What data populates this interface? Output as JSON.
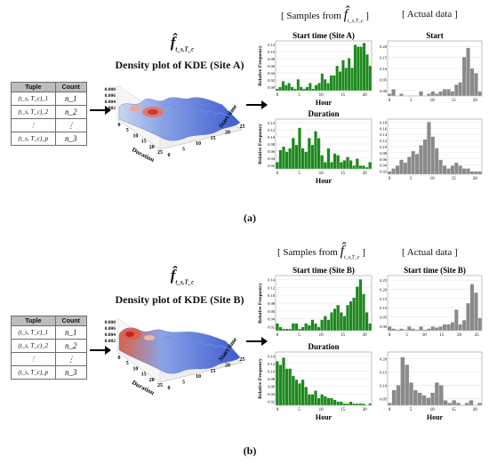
{
  "panels": [
    {
      "id": "a",
      "label": "(a)",
      "table": {
        "headers": [
          "Tuple",
          "Count"
        ],
        "rows": [
          {
            "tuple": "(t_s, T_c)_1",
            "count": "n_1"
          },
          {
            "tuple": "(t_s, T_c)_2",
            "count": "n_2"
          },
          {
            "tuple": "⋮",
            "count": "⋮"
          },
          {
            "tuple": "(t_s, T_c)_p",
            "count": "n_3"
          }
        ]
      },
      "kde_title": "Density plot of KDE (Site A)",
      "fhat_symbol": "f̂",
      "fhat_subscript": "t_s,T_c",
      "density_axis_ticks": [
        "0.008",
        "0.006",
        "0.004",
        "0.002"
      ],
      "duration_axis_label": "Duration",
      "duration_ticks": [
        "0",
        "5",
        "10",
        "15",
        "20",
        "25"
      ],
      "start_axis_label": "Start time",
      "start_ticks": [
        "0",
        "5",
        "10",
        "15",
        "20",
        "25"
      ],
      "samples_header": "[ Samples from",
      "samples_header_close": "]",
      "actual_header": "[ Actual data ]",
      "hists": {
        "sample_start": {
          "title": "Start time (Site A)",
          "ylabel": "Relative Frequency",
          "xlabel": "Hour",
          "yticks": [
            "0.00",
            "0.02",
            "0.04",
            "0.06",
            "0.08",
            "0.10",
            "0.12"
          ],
          "xticks": [
            "0",
            "5",
            "10",
            "15",
            "20"
          ],
          "values": [
            0.005,
            0.01,
            0.025,
            0.015,
            0.02,
            0.01,
            0.005,
            0.03,
            0.01,
            0.005,
            0.01,
            0.02,
            0.005,
            0.015,
            0.02,
            0.045,
            0.03,
            0.02,
            0.04,
            0.04,
            0.065,
            0.05,
            0.08,
            0.06,
            0.085,
            0.06,
            0.12,
            0.115,
            0.115,
            0.125,
            0.095,
            0.065
          ],
          "ymax": 0.13
        },
        "actual_start": {
          "title": "Start",
          "ylabel": "",
          "xlabel": "",
          "yticks": [
            "0.00",
            "0.05",
            "0.10",
            "0.15",
            "0.20"
          ],
          "xticks": [
            "0",
            "5",
            "10",
            "15",
            "20"
          ],
          "values": [
            0.01,
            0.03,
            0,
            0.01,
            0,
            0,
            0,
            0,
            0.02,
            0,
            0.01,
            0.02,
            0.01,
            0.02,
            0.03,
            0.03,
            0.02,
            0.05,
            0.06,
            0.17,
            0.21,
            0.12,
            0.1,
            0.02
          ],
          "ymax": 0.24
        },
        "sample_dur": {
          "title": "Duration",
          "ylabel": "Relative Frequency",
          "xlabel": "Hour",
          "yticks": [
            "0.02",
            "0.04",
            "0.06",
            "0.08",
            "0.10",
            "0.12",
            "0.14"
          ],
          "xticks": [
            "0",
            "5",
            "10",
            "15",
            "20"
          ],
          "values": [
            0.02,
            0.055,
            0.065,
            0.05,
            0.06,
            0.09,
            0.07,
            0.12,
            0.06,
            0.05,
            0.09,
            0.07,
            0.11,
            0.09,
            0.04,
            0.02,
            0.06,
            0.02,
            0.045,
            0.04,
            0.02,
            0.025,
            0.035,
            0.025,
            0.01,
            0.03,
            0.01,
            0.01,
            0.005,
            0.02
          ],
          "ymax": 0.145
        },
        "actual_dur": {
          "title": "",
          "ylabel": "",
          "xlabel": "",
          "yticks": [
            "0.02",
            "0.04",
            "0.06",
            "0.08",
            "0.10",
            "0.12",
            "0.14",
            "0.16",
            "0.18"
          ],
          "xticks": [
            "0",
            "5",
            "10",
            "15",
            "20"
          ],
          "values": [
            0.01,
            0.02,
            0.03,
            0.05,
            0.04,
            0.06,
            0.08,
            0.07,
            0.1,
            0.12,
            0.18,
            0.13,
            0.09,
            0.05,
            0.03,
            0.02,
            0.03,
            0.04,
            0.03,
            0.02,
            0.02,
            0.01,
            0.01,
            0.01
          ],
          "ymax": 0.19
        }
      }
    },
    {
      "id": "b",
      "label": "(b)",
      "table": {
        "headers": [
          "Tuple",
          "Count"
        ],
        "rows": [
          {
            "tuple": "(t_s, T_c)_1",
            "count": "n_1"
          },
          {
            "tuple": "(t_s, T_c)_2",
            "count": "n_2"
          },
          {
            "tuple": "⋮",
            "count": "⋮"
          },
          {
            "tuple": "(t_s, T_c)_p",
            "count": "n_3"
          }
        ]
      },
      "kde_title": "Density plot of KDE (Site B)",
      "fhat_symbol": "f̂",
      "fhat_subscript": "t_s,T_c",
      "density_axis_ticks": [
        "0.008",
        "0.006",
        "0.004",
        "0.002"
      ],
      "duration_axis_label": "Duration",
      "duration_ticks": [
        "0",
        "5",
        "10",
        "15",
        "20",
        "25"
      ],
      "start_axis_label": "Start time",
      "start_ticks": [
        "0",
        "5",
        "10",
        "15",
        "20",
        "25"
      ],
      "samples_header": "[ Samples from",
      "samples_header_close": "]",
      "actual_header": "[ Actual data ]",
      "hists": {
        "sample_start": {
          "title": "Start time (Site B)",
          "ylabel": "Relative Frequency",
          "xlabel": "",
          "yticks": [
            "0.02",
            "0.04",
            "0.06",
            "0.08",
            "0.10",
            "0.12",
            "0.14"
          ],
          "xticks": [
            "0",
            "5",
            "10",
            "15",
            "20"
          ],
          "values": [
            0.02,
            0.01,
            0.005,
            0.005,
            0.005,
            0.02,
            0.02,
            0.005,
            0.01,
            0.02,
            0.015,
            0.03,
            0.02,
            0.01,
            0.03,
            0.04,
            0.03,
            0.05,
            0.06,
            0.07,
            0.05,
            0.04,
            0.07,
            0.08,
            0.09,
            0.12,
            0.14,
            0.1,
            0.05,
            0.02
          ],
          "ymax": 0.15
        },
        "actual_start": {
          "title": "Start time (Site B)",
          "ylabel": "",
          "xlabel": "",
          "yticks": [
            "0.00",
            "0.05",
            "0.10",
            "0.15",
            "0.20",
            "0.25"
          ],
          "xticks": [
            "0",
            "5",
            "10",
            "15",
            "20",
            "25"
          ],
          "values": [
            0.02,
            0.01,
            0.005,
            0.01,
            0.005,
            0.02,
            0.01,
            0.005,
            0.02,
            0.005,
            0.01,
            0.02,
            0.015,
            0.02,
            0.03,
            0.03,
            0.04,
            0.1,
            0.03,
            0.05,
            0.13,
            0.22,
            0.18,
            0.06
          ],
          "ymax": 0.26
        },
        "sample_dur": {
          "title": "Duration",
          "ylabel": "Relative Frequency",
          "xlabel": "Hour",
          "yticks": [
            "0.02",
            "0.04",
            "0.06",
            "0.08",
            "0.10",
            "0.12",
            "0.14"
          ],
          "xticks": [
            "0",
            "5",
            "10",
            "15",
            "20"
          ],
          "values": [
            0.12,
            0.11,
            0.13,
            0.1,
            0.1,
            0.08,
            0.07,
            0.06,
            0.07,
            0.05,
            0.03,
            0.03,
            0.04,
            0.02,
            0.03,
            0.025,
            0.02,
            0.02,
            0.015,
            0.01,
            0.01,
            0.005,
            0.005,
            0.01,
            0.005,
            0.005,
            0.005,
            0.005,
            0,
            0.005
          ],
          "ymax": 0.145
        },
        "actual_dur": {
          "title": "",
          "ylabel": "",
          "xlabel": "Hour",
          "yticks": [
            "0.05",
            "0.10",
            "0.15",
            "0.20"
          ],
          "xticks": [
            "0",
            "5",
            "10",
            "15",
            "20"
          ],
          "values": [
            0.01,
            0.06,
            0.08,
            0.19,
            0.16,
            0.09,
            0.06,
            0.05,
            0.04,
            0.03,
            0.05,
            0.09,
            0.08,
            0.02,
            0.01,
            0.02,
            0.01,
            0,
            0.01,
            0.02,
            0,
            0.01
          ],
          "ymax": 0.21
        }
      }
    }
  ]
}
